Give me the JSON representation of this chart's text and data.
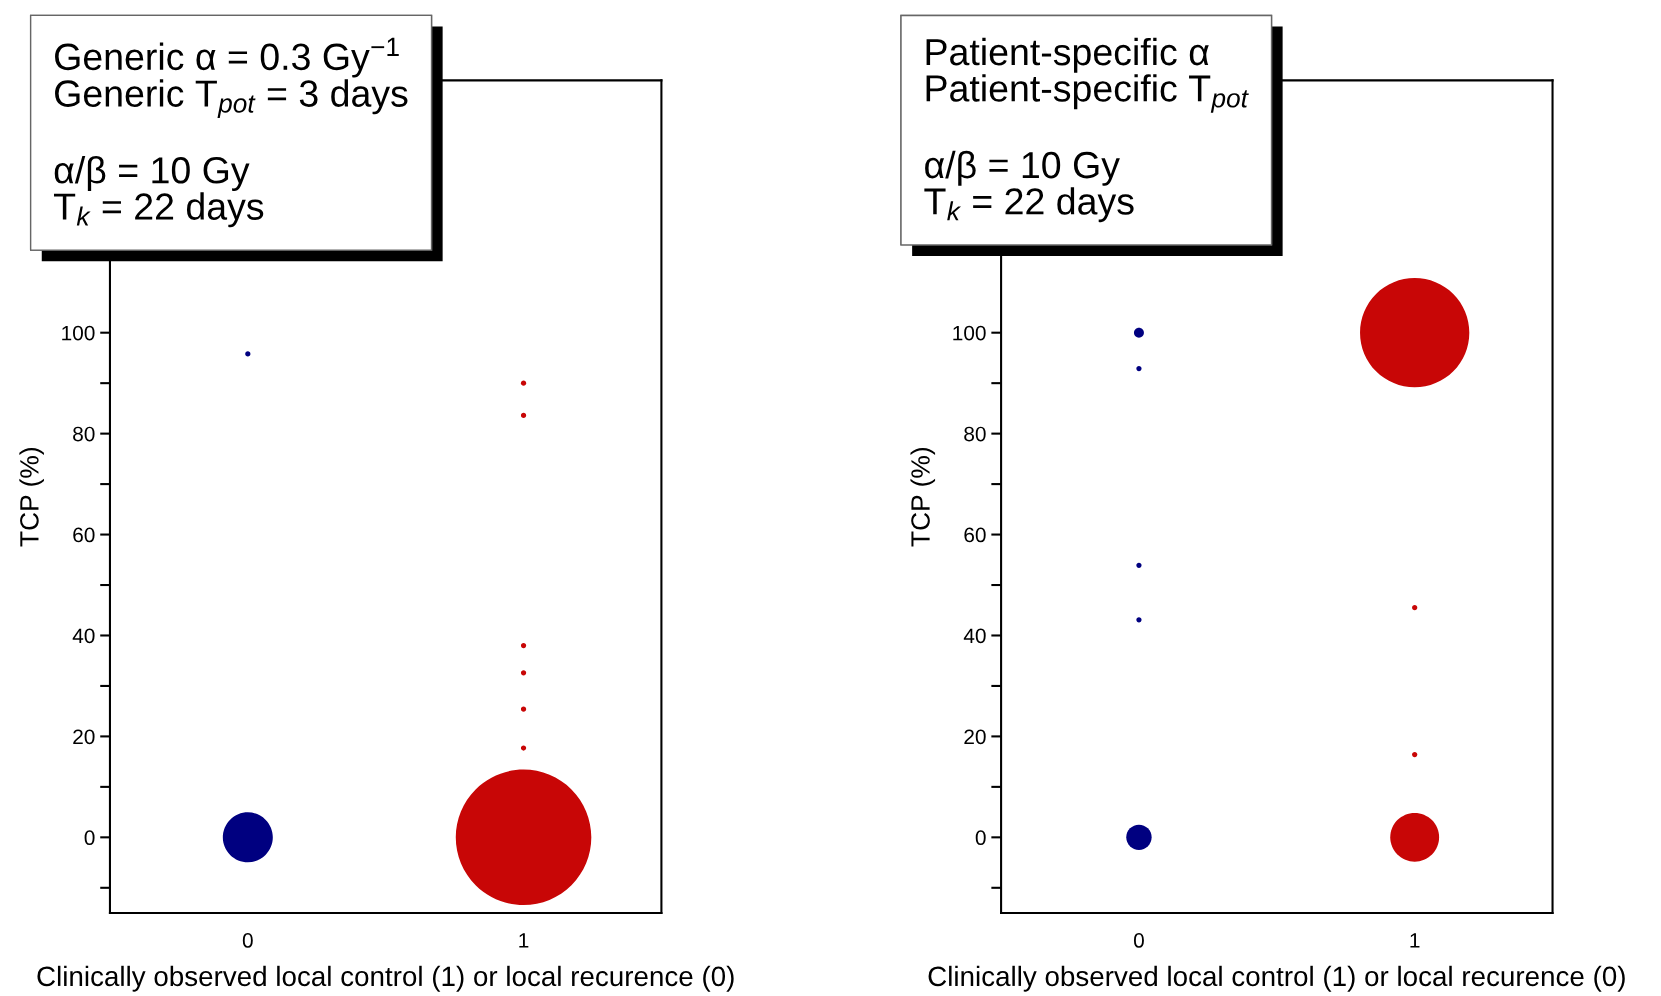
{
  "chart_data": [
    {
      "type": "bubble",
      "xlabel": "Clinically observed local control (1) or local recurence (0)",
      "ylabel": "TCP (%)",
      "categories": [
        "0",
        "1"
      ],
      "ylim": [
        -15,
        150
      ],
      "yticks": [
        {
          "value": -10,
          "label": null
        },
        0,
        {
          "value": 10,
          "label": null
        },
        20,
        {
          "value": 30,
          "label": null
        },
        40,
        {
          "value": 50,
          "label": null
        },
        60,
        {
          "value": 70,
          "label": null
        },
        80,
        {
          "value": 90,
          "label": null
        },
        100
      ],
      "grid": false,
      "marker": "circle",
      "annotations": [
        "Generic α = 0.3 Gy$^{−1}$\nGeneric T$_{pot}$ = 3 days\n\nα/β = 10 Gy\nT$_{k}$ = 22 days"
      ],
      "series": [
        {
          "color": "#000080",
          "x": [
            "0",
            "0"
          ],
          "values": [
            95.8,
            0
          ],
          "sizes": [
            0.0015,
            0.136
          ]
        },
        {
          "color": "#c80606",
          "x": [
            "1",
            "1",
            "1",
            "1",
            "1",
            "1",
            "1"
          ],
          "values": [
            90.0,
            83.6,
            38.0,
            32.6,
            25.4,
            17.7,
            0
          ],
          "sizes": [
            0.0015,
            0.0015,
            0.0015,
            0.0015,
            0.0015,
            0.0015,
            1
          ]
        }
      ]
    },
    {
      "type": "bubble",
      "xlabel": "Clinically observed local control (1) or local recurence (0)",
      "ylabel": "TCP (%)",
      "categories": [
        "0",
        "1"
      ],
      "ylim": [
        -15,
        150
      ],
      "yticks": [
        {
          "value": -10,
          "label": null
        },
        0,
        {
          "value": 10,
          "label": null
        },
        20,
        {
          "value": 30,
          "label": null
        },
        40,
        {
          "value": 50,
          "label": null
        },
        60,
        {
          "value": 70,
          "label": null
        },
        80,
        {
          "value": 90,
          "label": null
        },
        100
      ],
      "grid": false,
      "marker": "circle",
      "annotations": [
        "Patient-specific α\nPatient-specific T$_{pot}$\n\nα/β = 10 Gy\nT$_{k}$ = 22 days"
      ],
      "series": [
        {
          "color": "#000080",
          "x": [
            "0",
            "0",
            "0",
            "0",
            "0"
          ],
          "values": [
            100,
            92.9,
            53.9,
            43.1,
            0
          ],
          "sizes": [
            0.0083,
            0.0023,
            0.0023,
            0.0023,
            0.054
          ]
        },
        {
          "color": "#c80606",
          "x": [
            "1",
            "1",
            "1",
            "1"
          ],
          "values": [
            100,
            45.5,
            16.4,
            0
          ],
          "sizes": [
            1,
            0.0023,
            0.0023,
            0.2
          ]
        }
      ]
    }
  ]
}
